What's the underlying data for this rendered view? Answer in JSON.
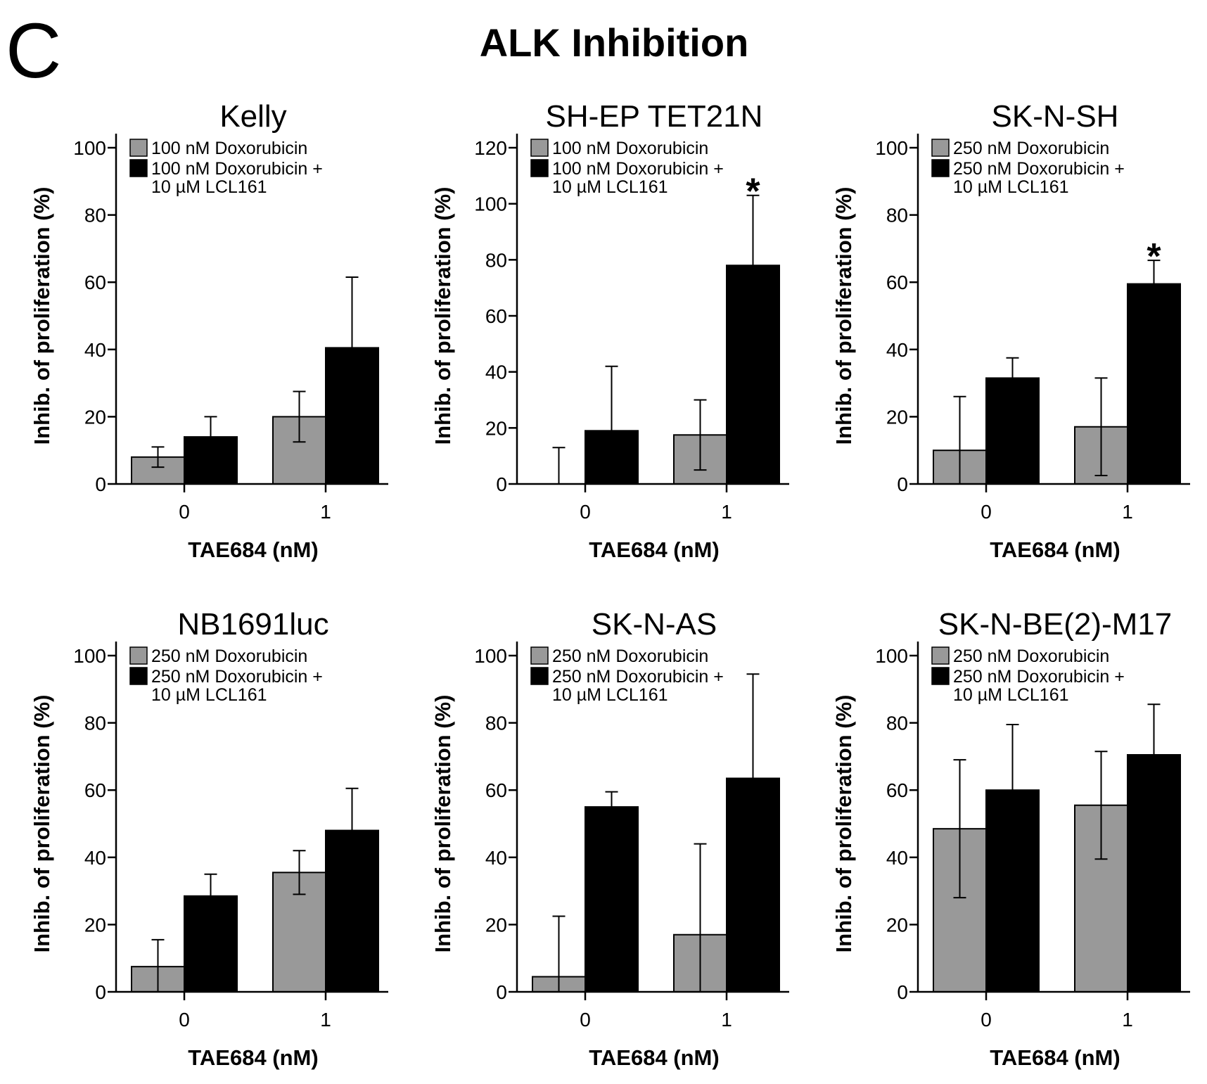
{
  "panel_letter": "C",
  "figure_title": "ALK Inhibition",
  "colors": {
    "gray": "#999999",
    "black": "#000000",
    "axis": "#000000"
  },
  "chart_data": [
    {
      "type": "bar",
      "title": "Kelly",
      "xlabel": "TAE684 (nM)",
      "ylabel": "Inhib. of proliferation (%)",
      "ylim": [
        0,
        100
      ],
      "yticks": [
        0,
        20,
        40,
        60,
        80,
        100
      ],
      "categories": [
        "0",
        "1"
      ],
      "series": [
        {
          "name": "100 nM Doxorubicin",
          "legend_lines": [
            "100 nM Doxorubicin"
          ],
          "color": "gray",
          "values": [
            8,
            20
          ],
          "errors": [
            3,
            7.5
          ]
        },
        {
          "name": "100 nM Doxorubicin + 10 µM LCL161",
          "legend_lines": [
            "100 nM Doxorubicin +",
            "10 µM LCL161"
          ],
          "color": "black",
          "values": [
            14,
            40.5
          ],
          "errors": [
            6,
            21
          ]
        }
      ],
      "significance": [
        "",
        ""
      ]
    },
    {
      "type": "bar",
      "title": "SH-EP TET21N",
      "xlabel": "TAE684 (nM)",
      "ylabel": "Inhib. of proliferation (%)",
      "ylim": [
        0,
        120
      ],
      "yticks": [
        0,
        20,
        40,
        60,
        80,
        100,
        120
      ],
      "categories": [
        "0",
        "1"
      ],
      "series": [
        {
          "name": "100 nM Doxorubicin",
          "legend_lines": [
            "100 nM Doxorubicin"
          ],
          "color": "gray",
          "values": [
            0,
            17.5
          ],
          "errors": [
            13,
            12.5
          ]
        },
        {
          "name": "100 nM Doxorubicin + 10 µM LCL161",
          "legend_lines": [
            "100 nM Doxorubicin +",
            "10 µM LCL161"
          ],
          "color": "black",
          "values": [
            19,
            78
          ],
          "errors": [
            23,
            25
          ]
        }
      ],
      "significance": [
        "",
        "*"
      ]
    },
    {
      "type": "bar",
      "title": "SK-N-SH",
      "xlabel": "TAE684 (nM)",
      "ylabel": "Inhib. of proliferation (%)",
      "ylim": [
        0,
        100
      ],
      "yticks": [
        0,
        20,
        40,
        60,
        80,
        100
      ],
      "categories": [
        "0",
        "1"
      ],
      "series": [
        {
          "name": "250 nM Doxorubicin",
          "legend_lines": [
            "250 nM Doxorubicin"
          ],
          "color": "gray",
          "values": [
            10,
            17
          ],
          "errors": [
            16,
            14.5
          ]
        },
        {
          "name": "250 nM Doxorubicin + 10 µM LCL161",
          "legend_lines": [
            "250 nM Doxorubicin +",
            "10 µM LCL161"
          ],
          "color": "black",
          "values": [
            31.5,
            59.5
          ],
          "errors": [
            6,
            7
          ]
        }
      ],
      "significance": [
        "",
        "*"
      ]
    },
    {
      "type": "bar",
      "title": "NB1691luc",
      "xlabel": "TAE684 (nM)",
      "ylabel": "Inhib. of proliferation (%)",
      "ylim": [
        0,
        100
      ],
      "yticks": [
        0,
        20,
        40,
        60,
        80,
        100
      ],
      "categories": [
        "0",
        "1"
      ],
      "series": [
        {
          "name": "250 nM Doxorubicin",
          "legend_lines": [
            "250 nM Doxorubicin"
          ],
          "color": "gray",
          "values": [
            7.5,
            35.5
          ],
          "errors": [
            8,
            6.5
          ]
        },
        {
          "name": "250 nM Doxorubicin + 10 µM LCL161",
          "legend_lines": [
            "250 nM Doxorubicin +",
            "10 µM LCL161"
          ],
          "color": "black",
          "values": [
            28.5,
            48
          ],
          "errors": [
            6.5,
            12.5
          ]
        }
      ],
      "significance": [
        "",
        ""
      ]
    },
    {
      "type": "bar",
      "title": "SK-N-AS",
      "xlabel": "TAE684 (nM)",
      "ylabel": "Inhib. of proliferation (%)",
      "ylim": [
        0,
        100
      ],
      "yticks": [
        0,
        20,
        40,
        60,
        80,
        100
      ],
      "categories": [
        "0",
        "1"
      ],
      "series": [
        {
          "name": "250 nM Doxorubicin",
          "legend_lines": [
            "250 nM Doxorubicin"
          ],
          "color": "gray",
          "values": [
            4.5,
            17
          ],
          "errors": [
            18,
            27
          ]
        },
        {
          "name": "250 nM Doxorubicin + 10 µM LCL161",
          "legend_lines": [
            "250 nM Doxorubicin +",
            "10 µM LCL161"
          ],
          "color": "black",
          "values": [
            55,
            63.5
          ],
          "errors": [
            4.5,
            31
          ]
        }
      ],
      "significance": [
        "",
        ""
      ]
    },
    {
      "type": "bar",
      "title": "SK-N-BE(2)-M17",
      "xlabel": "TAE684 (nM)",
      "ylabel": "Inhib. of proliferation (%)",
      "ylim": [
        0,
        100
      ],
      "yticks": [
        0,
        20,
        40,
        60,
        80,
        100
      ],
      "categories": [
        "0",
        "1"
      ],
      "series": [
        {
          "name": "250 nM Doxorubicin",
          "legend_lines": [
            "250 nM Doxorubicin"
          ],
          "color": "gray",
          "values": [
            48.5,
            55.5
          ],
          "errors": [
            20.5,
            16
          ]
        },
        {
          "name": "250 nM Doxorubicin + 10 µM LCL161",
          "legend_lines": [
            "250 nM Doxorubicin +",
            "10 µM LCL161"
          ],
          "color": "black",
          "values": [
            60,
            70.5
          ],
          "errors": [
            19.5,
            15
          ]
        }
      ],
      "significance": [
        "",
        ""
      ]
    }
  ]
}
